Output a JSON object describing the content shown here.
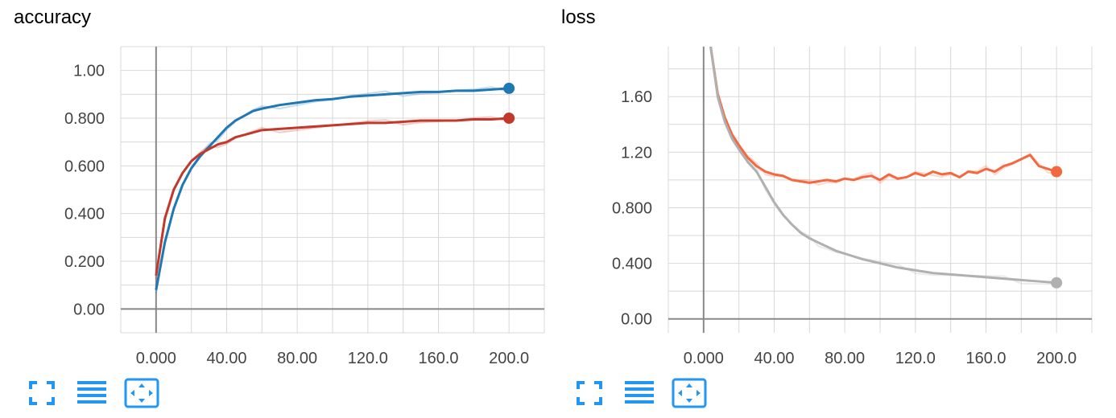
{
  "charts": [
    {
      "title": "accuracy"
    },
    {
      "title": "loss"
    }
  ],
  "toolbar_icons": [
    "fullscreen-icon",
    "list-icon",
    "fit-domain-icon"
  ],
  "colors": {
    "acc_train": "#1f77b4",
    "acc_val": "#c0392b",
    "loss_val": "#f4683f",
    "loss_train": "#b0b0b0",
    "grid": "#d8d8d8",
    "axis": "#888888",
    "button": "#2196f3"
  },
  "chart_data": [
    {
      "type": "line",
      "title": "accuracy",
      "xlim": [
        -20,
        220
      ],
      "ylim": [
        -0.1,
        1.1
      ],
      "x_ticks": [
        "0.000",
        "40.00",
        "80.00",
        "120.0",
        "160.0",
        "200.0"
      ],
      "x_tick_values": [
        0,
        40,
        80,
        120,
        160,
        200
      ],
      "y_ticks": [
        "0.00",
        "0.200",
        "0.400",
        "0.600",
        "0.800",
        "1.00"
      ],
      "y_tick_values": [
        0,
        0.2,
        0.4,
        0.6,
        0.8,
        1.0
      ],
      "grid": true,
      "series": [
        {
          "color": "#1f77b4",
          "x": [
            0,
            5,
            10,
            15,
            20,
            25,
            30,
            35,
            40,
            45,
            50,
            55,
            60,
            70,
            80,
            90,
            100,
            110,
            120,
            130,
            140,
            150,
            160,
            170,
            180,
            190,
            200
          ],
          "y": [
            0.08,
            0.28,
            0.42,
            0.52,
            0.59,
            0.64,
            0.68,
            0.72,
            0.76,
            0.79,
            0.81,
            0.83,
            0.84,
            0.855,
            0.865,
            0.875,
            0.88,
            0.89,
            0.895,
            0.9,
            0.905,
            0.91,
            0.91,
            0.915,
            0.915,
            0.92,
            0.925
          ]
        },
        {
          "color": "#c0392b",
          "x": [
            0,
            5,
            10,
            15,
            20,
            25,
            30,
            35,
            40,
            45,
            50,
            55,
            60,
            70,
            80,
            90,
            100,
            110,
            120,
            130,
            140,
            150,
            160,
            170,
            180,
            190,
            200
          ],
          "y": [
            0.14,
            0.38,
            0.5,
            0.57,
            0.62,
            0.65,
            0.67,
            0.69,
            0.7,
            0.72,
            0.73,
            0.74,
            0.75,
            0.755,
            0.76,
            0.765,
            0.77,
            0.775,
            0.78,
            0.78,
            0.785,
            0.79,
            0.79,
            0.79,
            0.795,
            0.795,
            0.8
          ]
        }
      ]
    },
    {
      "type": "line",
      "title": "loss",
      "xlim": [
        -20,
        220
      ],
      "ylim": [
        -0.1,
        1.96
      ],
      "x_ticks": [
        "0.000",
        "40.00",
        "80.00",
        "120.0",
        "160.0",
        "200.0"
      ],
      "x_tick_values": [
        0,
        40,
        80,
        120,
        160,
        200
      ],
      "y_ticks": [
        "0.00",
        "0.400",
        "0.800",
        "1.20",
        "1.60"
      ],
      "y_tick_values": [
        0,
        0.4,
        0.8,
        1.2,
        1.6
      ],
      "grid": true,
      "series": [
        {
          "color": "#f4683f",
          "x": [
            4,
            8,
            12,
            16,
            20,
            25,
            30,
            35,
            40,
            45,
            50,
            55,
            60,
            65,
            70,
            75,
            80,
            85,
            90,
            95,
            100,
            105,
            110,
            115,
            120,
            125,
            130,
            135,
            140,
            145,
            150,
            155,
            160,
            165,
            170,
            175,
            180,
            185,
            190,
            195,
            200
          ],
          "y": [
            1.96,
            1.62,
            1.45,
            1.33,
            1.25,
            1.16,
            1.1,
            1.06,
            1.04,
            1.03,
            1.0,
            0.99,
            0.98,
            0.99,
            1.0,
            0.99,
            1.01,
            1.0,
            1.02,
            1.03,
            1.0,
            1.04,
            1.01,
            1.02,
            1.05,
            1.03,
            1.06,
            1.04,
            1.05,
            1.02,
            1.06,
            1.05,
            1.08,
            1.06,
            1.1,
            1.12,
            1.15,
            1.18,
            1.1,
            1.08,
            1.06
          ]
        },
        {
          "color": "#b0b0b0",
          "x": [
            4,
            8,
            12,
            16,
            20,
            25,
            30,
            35,
            40,
            45,
            50,
            55,
            60,
            65,
            70,
            75,
            80,
            90,
            100,
            110,
            120,
            130,
            140,
            150,
            160,
            170,
            180,
            190,
            200
          ],
          "y": [
            1.96,
            1.6,
            1.42,
            1.3,
            1.22,
            1.13,
            1.06,
            0.95,
            0.84,
            0.75,
            0.68,
            0.62,
            0.58,
            0.55,
            0.52,
            0.49,
            0.47,
            0.43,
            0.4,
            0.37,
            0.35,
            0.33,
            0.32,
            0.31,
            0.3,
            0.29,
            0.28,
            0.27,
            0.26
          ]
        }
      ]
    }
  ]
}
